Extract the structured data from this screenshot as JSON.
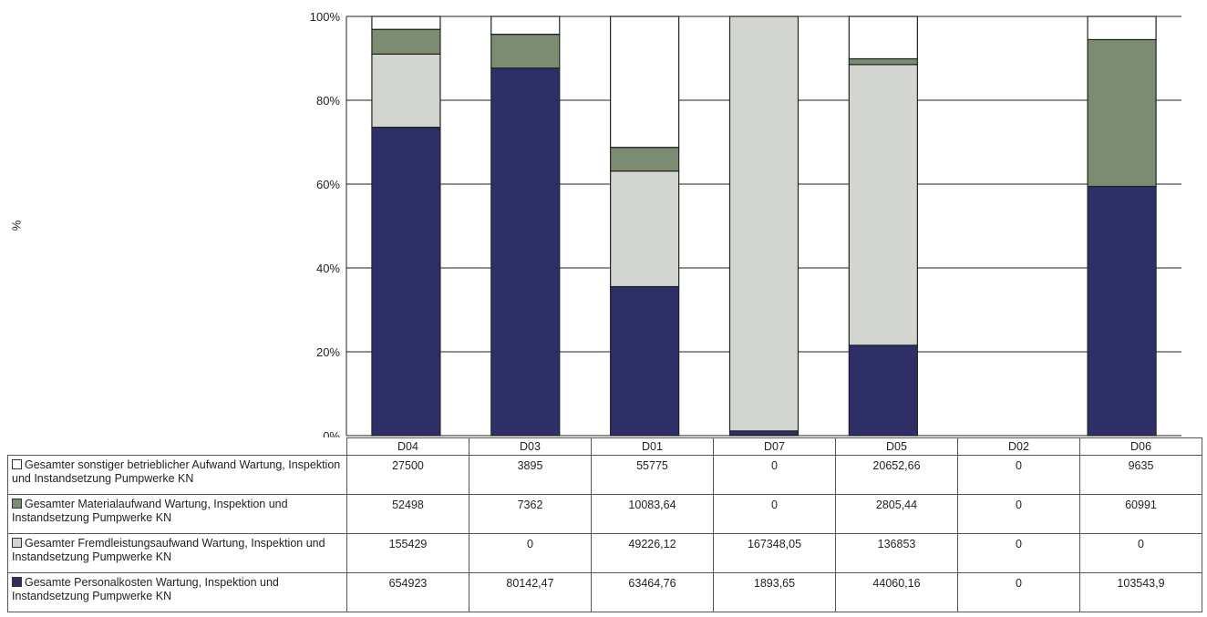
{
  "chart_data": {
    "type": "bar",
    "stacked": true,
    "normalized": true,
    "ylabel": "%",
    "ylim": [
      0,
      100
    ],
    "yticks": [
      "0%",
      "20%",
      "40%",
      "60%",
      "80%",
      "100%"
    ],
    "grid": true,
    "categories": [
      "D04",
      "D03",
      "D01",
      "D07",
      "D05",
      "D02",
      "D06"
    ],
    "series": [
      {
        "name": "Gesamte Personalkosten Wartung, Inspektion und Instandsetzung Pumpwerke KN",
        "color": "#2e2f66",
        "values": [
          654923,
          80142.47,
          63464.76,
          1893.65,
          44060.16,
          0,
          103543.9
        ],
        "labels": [
          "654923",
          "80142,47",
          "63464,76",
          "1893,65",
          "44060,16",
          "0",
          "103543,9"
        ]
      },
      {
        "name": "Gesamter Fremdleistungsaufwand Wartung, Inspektion und Instandsetzung Pumpwerke KN",
        "color": "#d3d6d0",
        "values": [
          155429,
          0,
          49226.12,
          167348.05,
          136853,
          0,
          0
        ],
        "labels": [
          "155429",
          "0",
          "49226,12",
          "167348,05",
          "136853",
          "0",
          "0"
        ]
      },
      {
        "name": "Gesamter Materialaufwand Wartung, Inspektion und Instandsetzung Pumpwerke KN",
        "color": "#7c8c72",
        "values": [
          52498,
          7362,
          10083.64,
          0,
          2805.44,
          0,
          60991
        ],
        "labels": [
          "52498",
          "7362",
          "10083,64",
          "0",
          "2805,44",
          "0",
          "60991"
        ]
      },
      {
        "name": "Gesamter sonstiger betrieblicher Aufwand Wartung, Inspektion und Instandsetzung Pumpwerke KN",
        "color": "#ffffff",
        "values": [
          27500,
          3895,
          55775,
          0,
          20652.66,
          0,
          9635
        ],
        "labels": [
          "27500",
          "3895",
          "55775",
          "0",
          "20652,66",
          "0",
          "9635"
        ]
      }
    ],
    "table_row_order": [
      3,
      2,
      1,
      0
    ]
  }
}
